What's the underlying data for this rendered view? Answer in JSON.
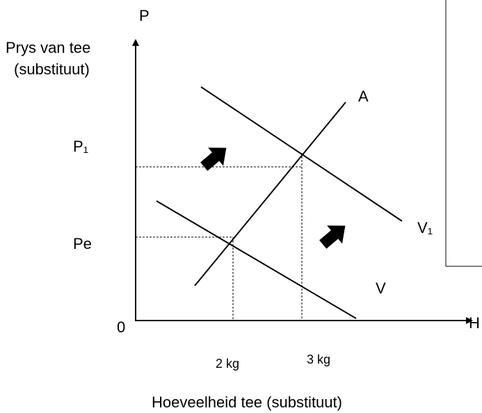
{
  "axes": {
    "y_letter": "P",
    "y_label_line1": "Prys van tee",
    "y_label_line2": "(substituut)",
    "x_letter": "H",
    "origin": "0",
    "x_title": "Hoeveelheid tee (substituut)"
  },
  "price_levels": [
    "P₁",
    "Pe"
  ],
  "quantity_levels": [
    "2 kg",
    "3 kg"
  ],
  "curves": {
    "supply": "A",
    "demand": "V",
    "demand_new": "V₁"
  }
}
